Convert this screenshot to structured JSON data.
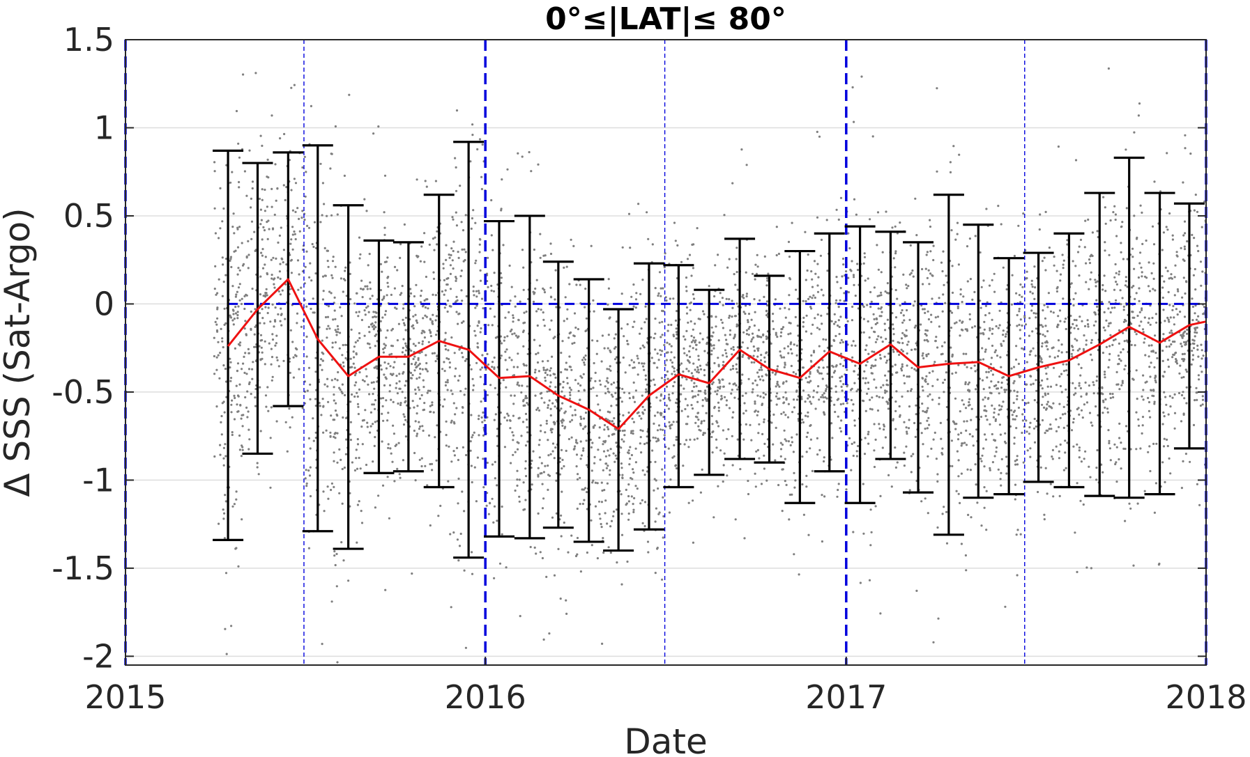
{
  "chart_data": {
    "type": "scatter",
    "title": "0°≤|LAT|≤ 80°",
    "xlabel": "Date",
    "ylabel": "Δ SSS (Sat-Argo)",
    "xlim": [
      "2015-01-01",
      "2018-01-01"
    ],
    "ylim": [
      -2.05,
      1.5
    ],
    "xticks": [
      "2015",
      "2016",
      "2017",
      "2018"
    ],
    "yticks": [
      {
        "value": 1.5,
        "label": "1.5"
      },
      {
        "value": 1,
        "label": "1"
      },
      {
        "value": 0.5,
        "label": "0.5"
      },
      {
        "value": 0,
        "label": "0"
      },
      {
        "value": -0.5,
        "label": "-0.5"
      },
      {
        "value": -1,
        "label": "-1"
      },
      {
        "value": -1.5,
        "label": "-1.5"
      },
      {
        "value": -2,
        "label": "-2"
      }
    ],
    "grid": true,
    "reference_lines": {
      "zero_line": {
        "y": 0,
        "from": "2015-04-15",
        "to": "2018-01-01",
        "style": "dashed",
        "color": "#0000dd"
      },
      "year_boundaries": [
        "2015-01-01",
        "2016-01-01",
        "2017-01-01",
        "2018-01-01"
      ],
      "mid_year": [
        "2015-07-01",
        "2016-07-01",
        "2017-07-01"
      ]
    },
    "colors": {
      "mean": "#ee1111",
      "error_bars": "#000000",
      "points": "#7f7f7f",
      "reference": "#0000dd",
      "grid": "#dddddd"
    },
    "monthly": [
      {
        "date": "2015-04-15",
        "mean": -0.24,
        "low": -1.34,
        "high": 0.87
      },
      {
        "date": "2015-05-15",
        "mean": -0.03,
        "low": -0.85,
        "high": 0.8
      },
      {
        "date": "2015-06-15",
        "mean": 0.14,
        "low": -0.58,
        "high": 0.86
      },
      {
        "date": "2015-07-15",
        "mean": -0.2,
        "low": -1.29,
        "high": 0.9
      },
      {
        "date": "2015-08-15",
        "mean": -0.41,
        "low": -1.39,
        "high": 0.56
      },
      {
        "date": "2015-09-15",
        "mean": -0.3,
        "low": -0.96,
        "high": 0.36
      },
      {
        "date": "2015-10-15",
        "mean": -0.3,
        "low": -0.95,
        "high": 0.35
      },
      {
        "date": "2015-11-15",
        "mean": -0.21,
        "low": -1.04,
        "high": 0.62
      },
      {
        "date": "2015-12-15",
        "mean": -0.26,
        "low": -1.44,
        "high": 0.92
      },
      {
        "date": "2016-01-15",
        "mean": -0.42,
        "low": -1.32,
        "high": 0.47
      },
      {
        "date": "2016-02-15",
        "mean": -0.41,
        "low": -1.33,
        "high": 0.5
      },
      {
        "date": "2016-03-15",
        "mean": -0.52,
        "low": -1.27,
        "high": 0.24
      },
      {
        "date": "2016-04-15",
        "mean": -0.6,
        "low": -1.35,
        "high": 0.14
      },
      {
        "date": "2016-05-15",
        "mean": -0.71,
        "low": -1.4,
        "high": -0.03
      },
      {
        "date": "2016-06-15",
        "mean": -0.52,
        "low": -1.28,
        "high": 0.23
      },
      {
        "date": "2016-07-15",
        "mean": -0.4,
        "low": -1.04,
        "high": 0.22
      },
      {
        "date": "2016-08-15",
        "mean": -0.45,
        "low": -0.97,
        "high": 0.08
      },
      {
        "date": "2016-09-15",
        "mean": -0.26,
        "low": -0.88,
        "high": 0.37
      },
      {
        "date": "2016-10-15",
        "mean": -0.37,
        "low": -0.9,
        "high": 0.16
      },
      {
        "date": "2016-11-15",
        "mean": -0.42,
        "low": -1.13,
        "high": 0.3
      },
      {
        "date": "2016-12-15",
        "mean": -0.27,
        "low": -0.95,
        "high": 0.4
      },
      {
        "date": "2017-01-15",
        "mean": -0.34,
        "low": -1.13,
        "high": 0.44
      },
      {
        "date": "2017-02-15",
        "mean": -0.23,
        "low": -0.88,
        "high": 0.41
      },
      {
        "date": "2017-03-15",
        "mean": -0.36,
        "low": -1.07,
        "high": 0.35
      },
      {
        "date": "2017-04-15",
        "mean": -0.34,
        "low": -1.31,
        "high": 0.62
      },
      {
        "date": "2017-05-15",
        "mean": -0.33,
        "low": -1.1,
        "high": 0.45
      },
      {
        "date": "2017-06-15",
        "mean": -0.41,
        "low": -1.08,
        "high": 0.26
      },
      {
        "date": "2017-07-15",
        "mean": -0.36,
        "low": -1.01,
        "high": 0.29
      },
      {
        "date": "2017-08-15",
        "mean": -0.32,
        "low": -1.04,
        "high": 0.4
      },
      {
        "date": "2017-09-15",
        "mean": -0.23,
        "low": -1.09,
        "high": 0.63
      },
      {
        "date": "2017-10-15",
        "mean": -0.13,
        "low": -1.1,
        "high": 0.83
      },
      {
        "date": "2017-11-15",
        "mean": -0.22,
        "low": -1.08,
        "high": 0.63
      },
      {
        "date": "2017-12-15",
        "mean": -0.12,
        "low": -0.82,
        "high": 0.57
      },
      {
        "date": "2018-01-01",
        "mean": -0.1
      }
    ],
    "scatter_points": {
      "date_range": [
        "2015-04-01",
        "2018-01-01"
      ],
      "value_range": [
        -2.05,
        1.5
      ]
    }
  }
}
